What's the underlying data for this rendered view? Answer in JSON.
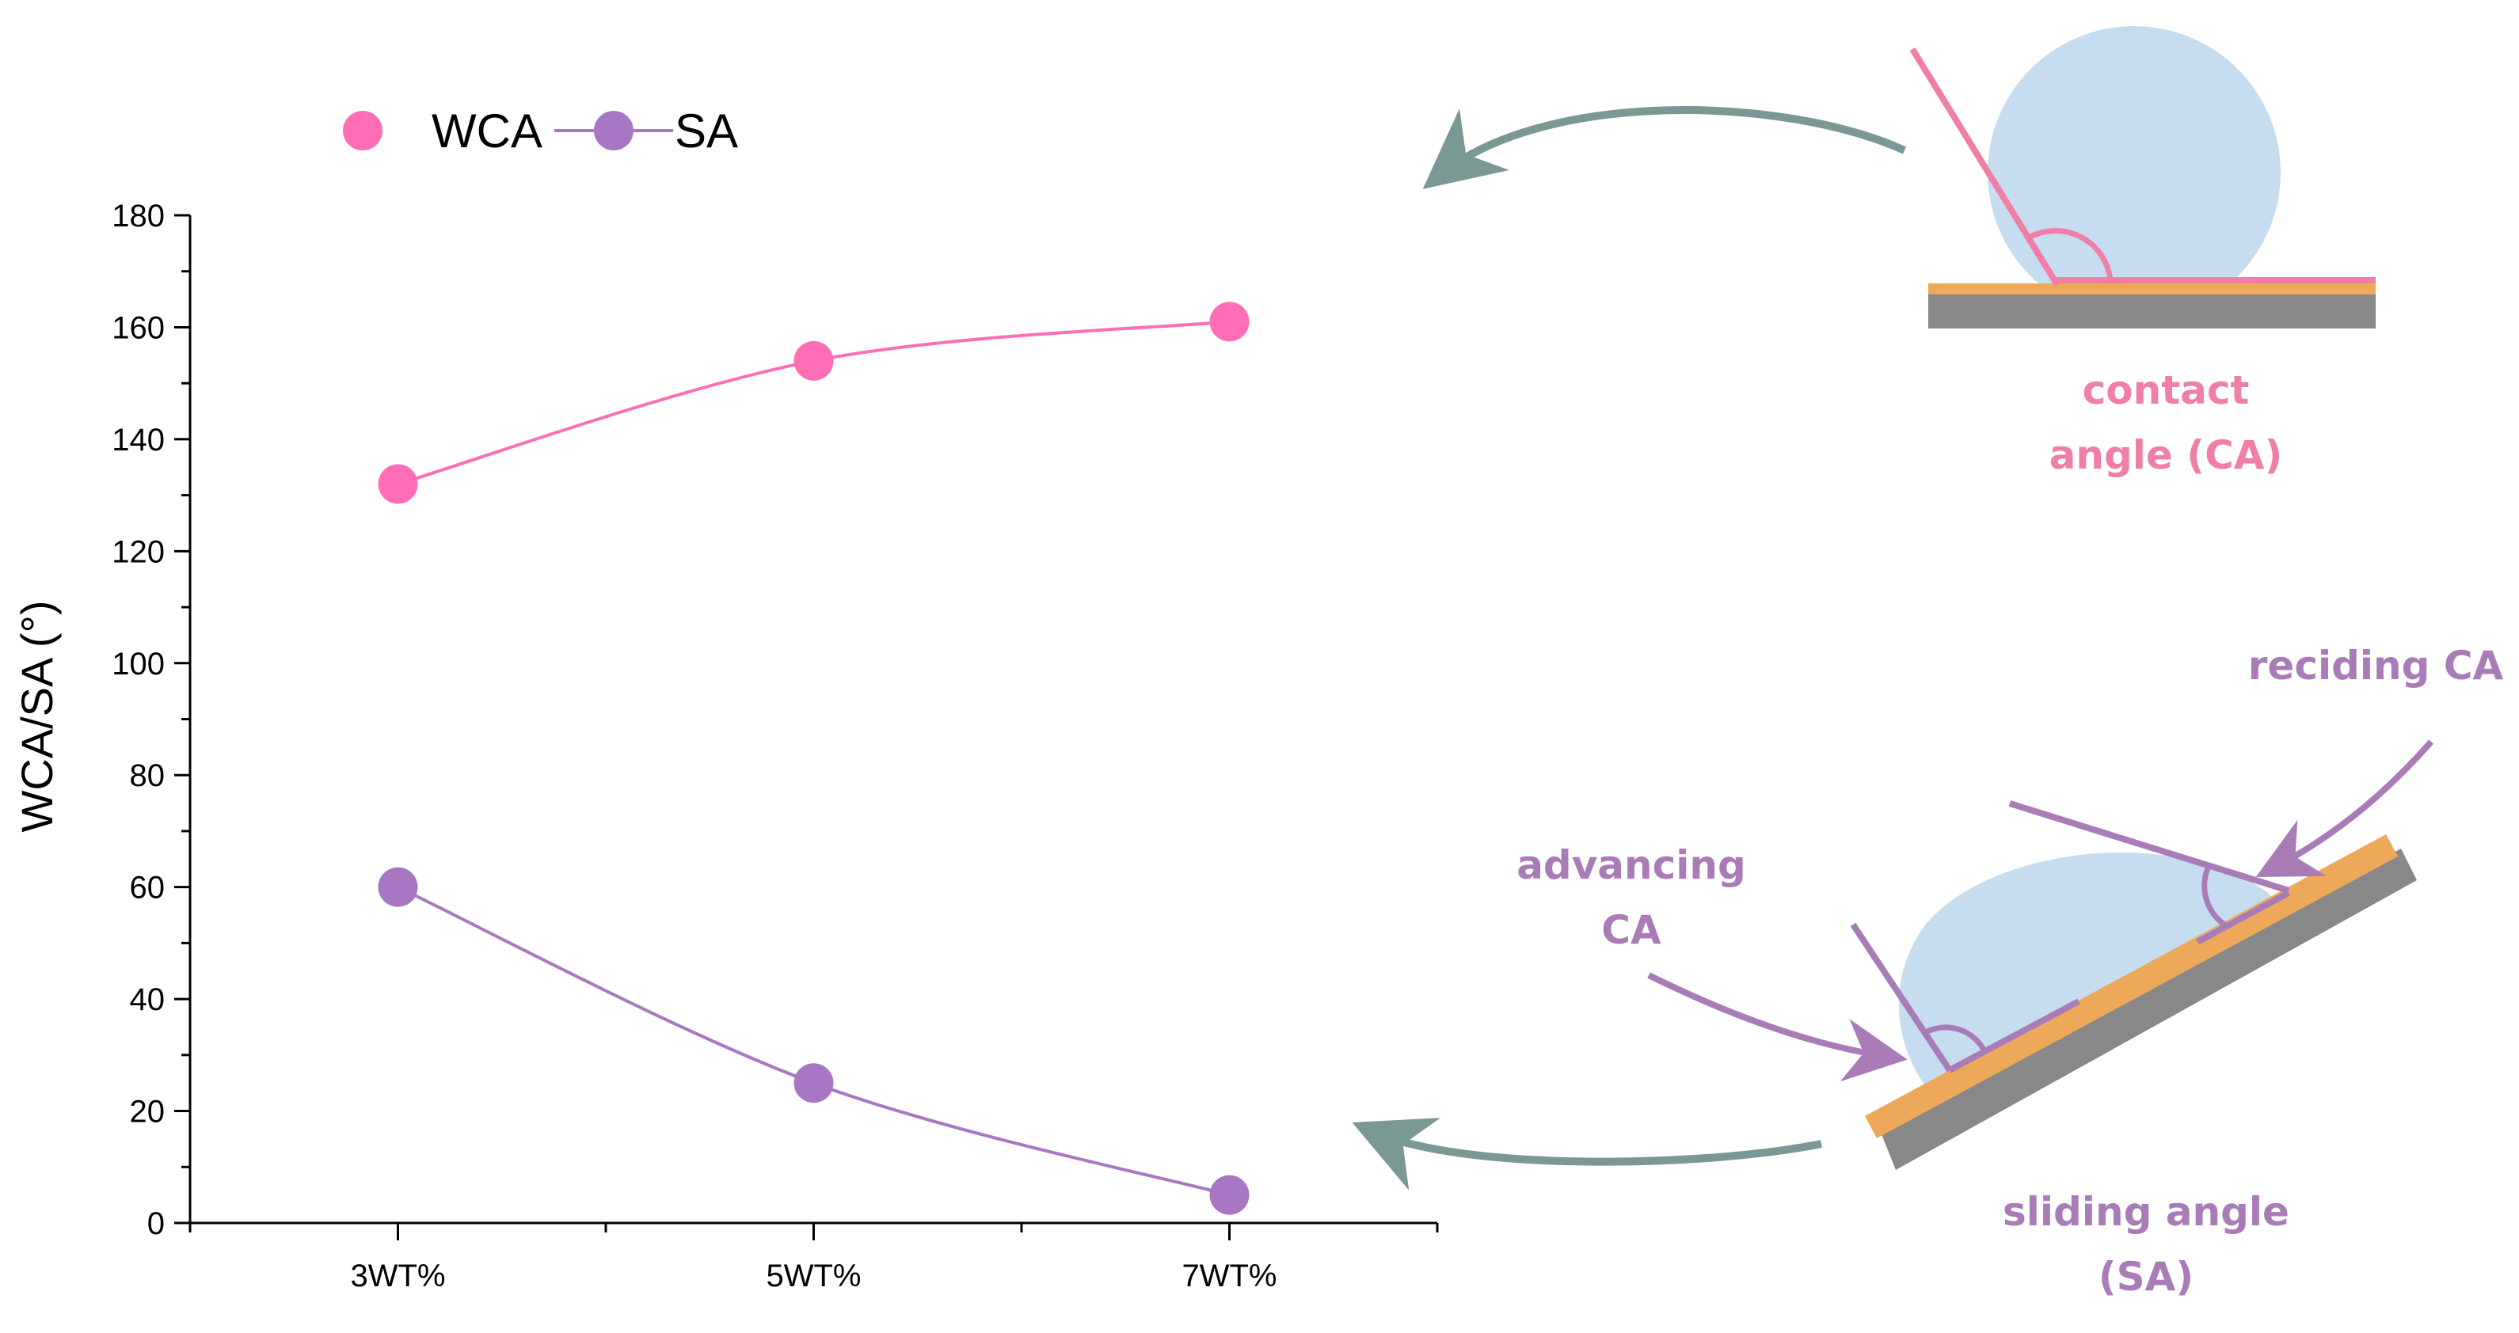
{
  "chart_data": {
    "type": "line",
    "categories": [
      "3WT%",
      "5WT%",
      "7WT%"
    ],
    "series": [
      {
        "name": "WCA",
        "values": [
          132,
          154,
          161
        ],
        "color": "#ff6eb4"
      },
      {
        "name": "SA",
        "values": [
          60,
          25,
          5
        ],
        "color": "#a877c4"
      }
    ],
    "ylabel": "WCA/SA (°)",
    "xlabel": "",
    "ylim": [
      0,
      180
    ],
    "yticks": [
      0,
      20,
      40,
      60,
      80,
      100,
      120,
      140,
      160,
      180
    ],
    "grid": false,
    "legend_position": "top-left",
    "smooth": true
  },
  "diagrams": {
    "contact": {
      "label_lines": [
        "contact",
        "angle (CA)"
      ],
      "color": "#f07fa8"
    },
    "sliding": {
      "label_lines": [
        "sliding angle",
        "(SA)"
      ],
      "advancing_lines": [
        "advancing",
        "CA"
      ],
      "receding_label": "reciding CA",
      "color": "#a97cb8"
    },
    "colors": {
      "droplet": "#c6dcef",
      "coating": "#eda85a",
      "substrate": "#888888",
      "arrow": "#7a9894"
    }
  }
}
